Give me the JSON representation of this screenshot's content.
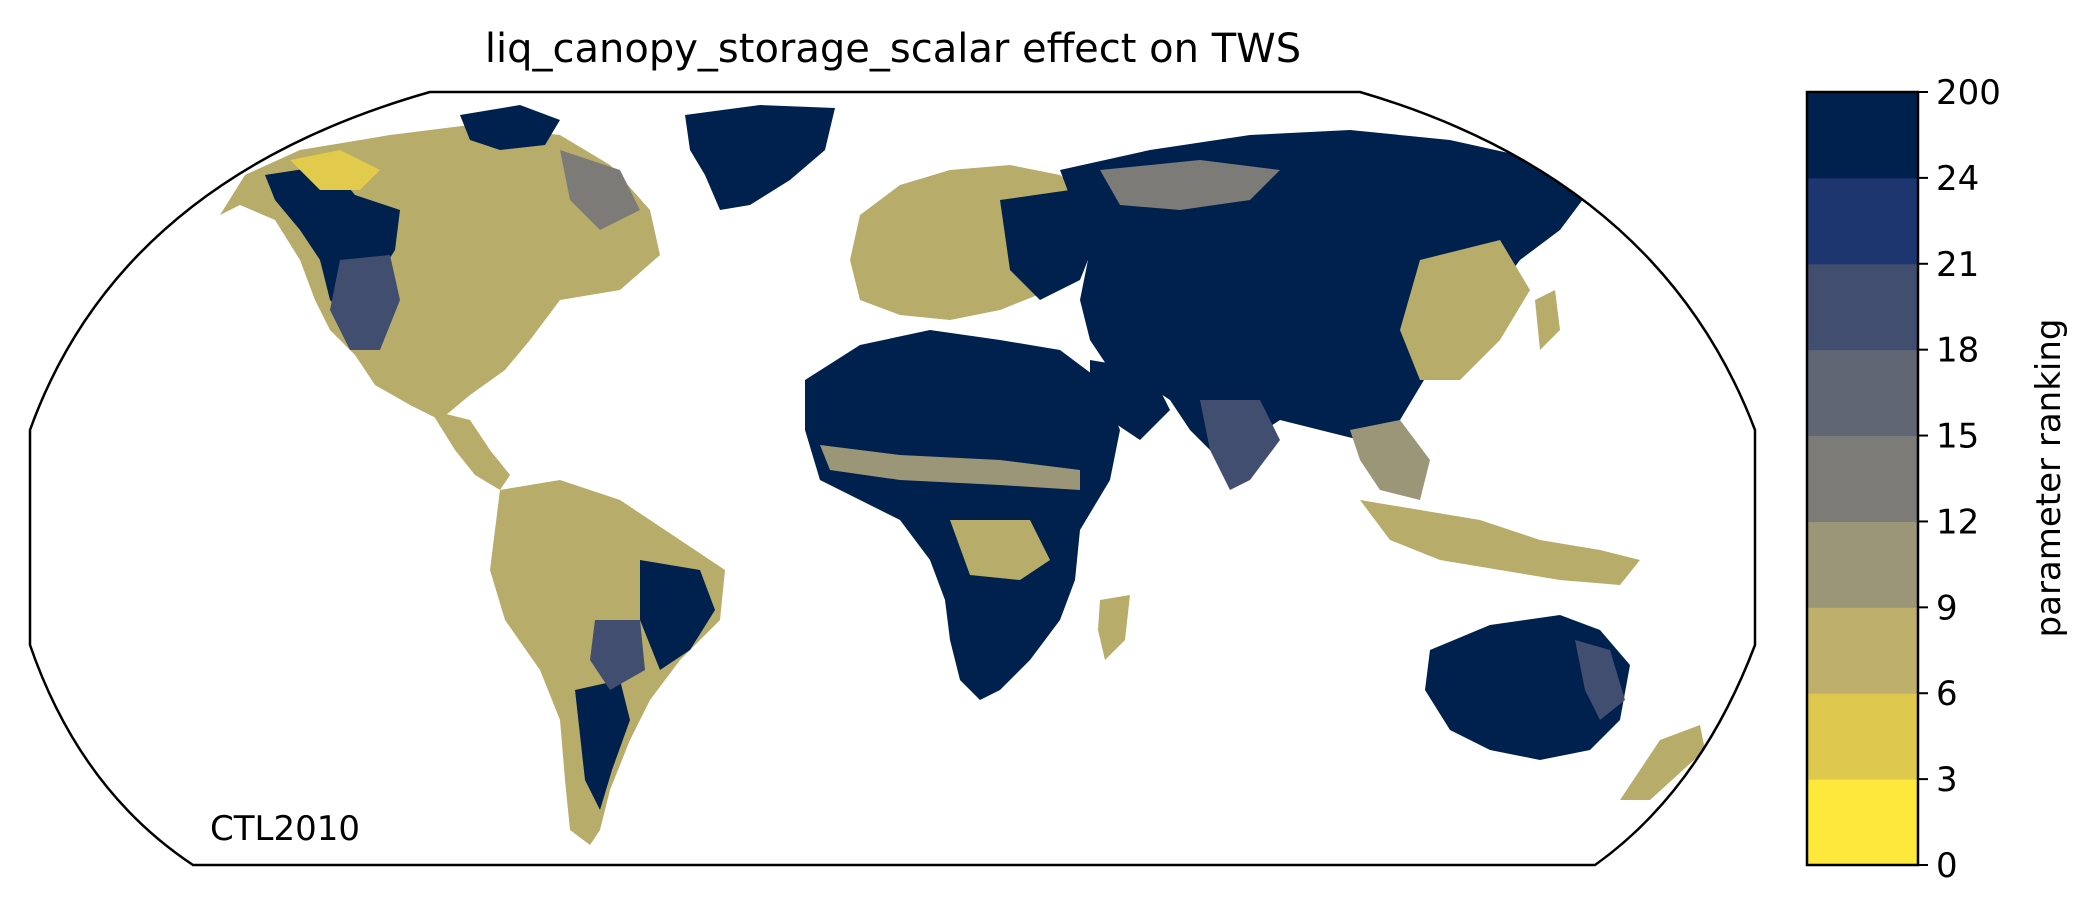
{
  "title": "liq_canopy_storage_scalar effect on TWS",
  "run_label": "CTL2010",
  "colorbar": {
    "label": "parameter ranking",
    "ticks": [
      "0",
      "3",
      "6",
      "9",
      "12",
      "15",
      "18",
      "21",
      "24",
      "200"
    ],
    "colors": [
      "#fee83b",
      "#dfc84e",
      "#beb06c",
      "#9c9678",
      "#7c7b78",
      "#606673",
      "#414e6f",
      "#1e3670",
      "#00214e"
    ]
  },
  "colors": {
    "land_outline": "#8a8a8a",
    "frame": "#000000",
    "background": "#ffffff"
  }
}
